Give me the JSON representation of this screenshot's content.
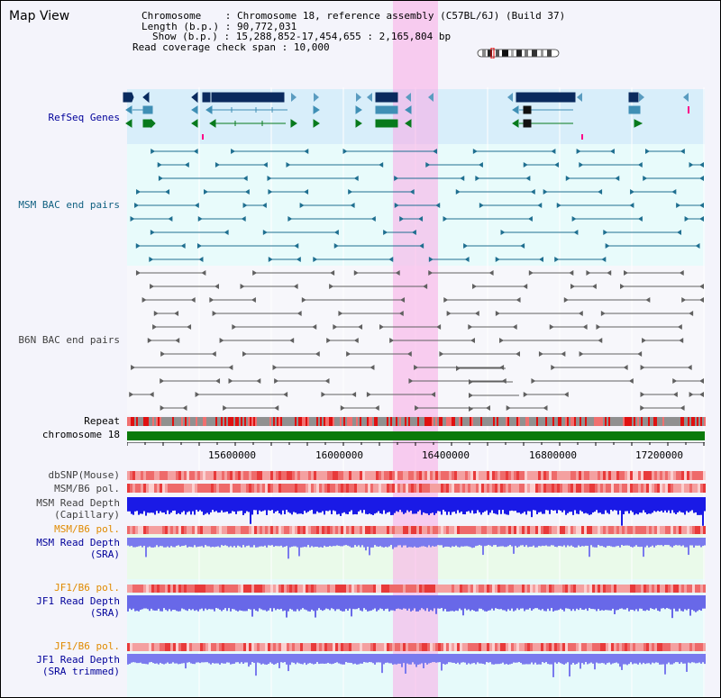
{
  "window": {
    "title": "Map View"
  },
  "info": {
    "chromosome_label": "Chromosome",
    "chromosome_value": "Chromosome 18, reference assembly (C57BL/6J) (Build 37)",
    "length_label": "Length (b.p.)",
    "length_value": "90,772,031",
    "show_label": "Show (b.p.)",
    "show_value": "15,288,852-17,454,655 : 2,165,804 bp",
    "coverage_label": "Read coverage check span",
    "coverage_value": "10,000"
  },
  "tracks": {
    "refseq": "RefSeq Genes",
    "msm_bac": "MSM BAC end pairs",
    "b6n_bac": "B6N BAC end pairs",
    "repeat": "Repeat",
    "chromosome": "chromosome 18",
    "dbsnp": "dbSNP(Mouse)",
    "msm_b6_pol_1": "MSM/B6 pol.",
    "msm_depth_cap_1": "MSM Read Depth",
    "msm_depth_cap_2": "(Capillary)",
    "msm_b6_pol_2": "MSM/B6 pol.",
    "msm_depth_sra_1": "MSM Read Depth",
    "msm_depth_sra_2": "(SRA)",
    "jf1_b6_pol_1": "JF1/B6 pol.",
    "jf1_depth_sra_1": "JF1 Read Depth",
    "jf1_depth_sra_2": "(SRA)",
    "jf1_b6_pol_2": "JF1/B6 pol.",
    "jf1_depth_trim_1": "JF1 Read Depth",
    "jf1_depth_trim_2": "(SRA trimmed)"
  },
  "scale": {
    "ticks": [
      "15600000",
      "16000000",
      "16400000",
      "16800000",
      "17200000"
    ],
    "tick_values": [
      15600000,
      16000000,
      16400000,
      16800000,
      17200000
    ]
  },
  "colors": {
    "refseq_bg": "#d8eefa",
    "msm_bg": "#e8fbfb",
    "gene_dark": "#0a2a5e",
    "gene_mid": "#3f8fb5",
    "gene_green": "#087a1c",
    "bac_msm": "#1f6f90",
    "bac_b6n": "#505050",
    "highlight": "#f9b9ea",
    "chrom_bar": "#0a7a0a",
    "depth_cap": "#1a1ae6",
    "depth_sra": "#7a7aee"
  }
}
